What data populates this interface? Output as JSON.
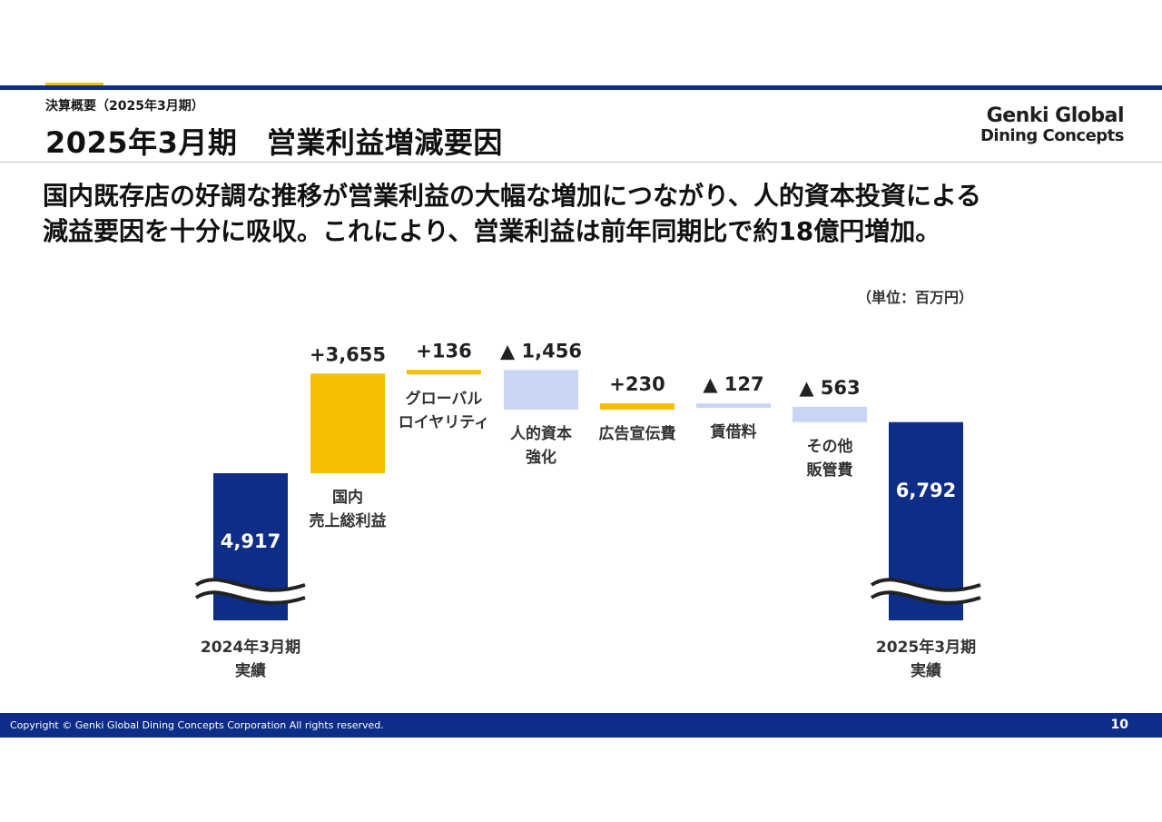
{
  "header": {
    "breadcrumb": "決算概要（2025年3月期）",
    "title": "2025年3月期　営業利益増減要因"
  },
  "logo": {
    "line1": "Genki Global",
    "line2": "Dining Concepts"
  },
  "lead": {
    "line1": "国内既存店の好調な推移が営業利益の大幅な増加につながり、人的資本投資による",
    "line2": "減益要因を十分に吸収。これにより、営業利益は前年同期比で約18億円増加。"
  },
  "colors": {
    "navy": "#0d2d87",
    "accent_yellow": "#f5bf00",
    "decrease_blue": "#c9d5f5"
  },
  "chart_data": {
    "type": "bar",
    "subtype": "waterfall",
    "unit": "（単位：百万円）",
    "axis_break": true,
    "bars": [
      {
        "label": [
          "2024年3月期",
          "実績"
        ],
        "kind": "total",
        "value": 4917,
        "value_label": "4,917"
      },
      {
        "label": [
          "国内",
          "売上総利益"
        ],
        "kind": "increase",
        "value": 3655,
        "value_label": "+3,655"
      },
      {
        "label": [
          "グローバル",
          "ロイヤリティ"
        ],
        "kind": "increase",
        "value": 136,
        "value_label": "+136"
      },
      {
        "label": [
          "人的資本",
          "強化"
        ],
        "kind": "decrease",
        "value": -1456,
        "value_label": "▲ 1,456"
      },
      {
        "label": [
          "広告宣伝費"
        ],
        "kind": "increase",
        "value": 230,
        "value_label": "+230"
      },
      {
        "label": [
          "賃借料"
        ],
        "kind": "decrease",
        "value": -127,
        "value_label": "▲ 127"
      },
      {
        "label": [
          "その他",
          "販管費"
        ],
        "kind": "decrease",
        "value": -563,
        "value_label": "▲ 563"
      },
      {
        "label": [
          "2025年3月期",
          "実績"
        ],
        "kind": "total",
        "value": 6792,
        "value_label": "6,792"
      }
    ]
  },
  "footer": {
    "copyright": "Copyright © Genki Global Dining Concepts Corporation All rights reserved.",
    "page": "10"
  }
}
